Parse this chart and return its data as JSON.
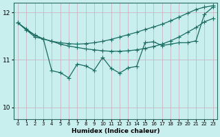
{
  "xlabel": "Humidex (Indice chaleur)",
  "bg_color": "#c8eeee",
  "line_color": "#1a6b60",
  "grid_color": "#c8a8b8",
  "xlim": [
    -0.5,
    23.5
  ],
  "ylim": [
    9.75,
    12.2
  ],
  "yticks": [
    10,
    11,
    12
  ],
  "xticks": [
    0,
    1,
    2,
    3,
    4,
    5,
    6,
    7,
    8,
    9,
    10,
    11,
    12,
    13,
    14,
    15,
    16,
    17,
    18,
    19,
    20,
    21,
    22,
    23
  ],
  "line1_x": [
    0,
    1,
    2,
    3,
    4,
    5,
    6,
    7,
    8,
    9,
    10,
    11,
    12,
    13,
    14,
    15,
    16,
    17,
    18,
    19,
    20,
    21,
    22,
    23
  ],
  "line1_y": [
    11.78,
    11.65,
    11.52,
    11.44,
    11.39,
    11.36,
    11.34,
    11.33,
    11.34,
    11.36,
    11.39,
    11.43,
    11.48,
    11.53,
    11.58,
    11.64,
    11.69,
    11.75,
    11.82,
    11.9,
    11.98,
    12.06,
    12.11,
    12.14
  ],
  "line2_x": [
    0,
    1,
    2,
    3,
    4,
    5,
    6,
    7,
    8,
    9,
    10,
    11,
    12,
    13,
    14,
    15,
    16,
    17,
    18,
    19,
    20,
    21,
    22,
    23
  ],
  "line2_y": [
    11.78,
    11.63,
    11.52,
    11.44,
    11.39,
    11.33,
    11.29,
    11.26,
    11.23,
    11.21,
    11.19,
    11.18,
    11.18,
    11.19,
    11.21,
    11.24,
    11.28,
    11.33,
    11.4,
    11.48,
    11.58,
    11.68,
    11.8,
    11.87
  ],
  "line3_x": [
    0,
    2,
    3,
    4,
    5,
    6,
    7,
    8,
    9,
    10,
    11,
    12,
    13,
    14,
    15,
    16,
    17,
    18,
    19,
    20,
    21,
    22,
    23
  ],
  "line3_y": [
    11.78,
    11.48,
    11.44,
    10.77,
    10.73,
    10.62,
    10.91,
    10.87,
    10.78,
    11.05,
    10.82,
    10.72,
    10.83,
    10.86,
    11.36,
    11.38,
    11.3,
    11.33,
    11.36,
    11.36,
    11.4,
    11.96,
    12.11
  ],
  "markersize": 3,
  "linewidth": 0.9
}
